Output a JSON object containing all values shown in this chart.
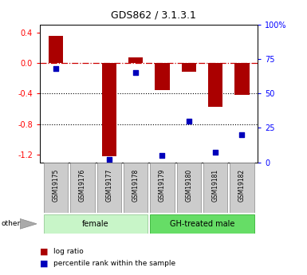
{
  "title": "GDS862 / 3.1.3.1",
  "samples": [
    "GSM19175",
    "GSM19176",
    "GSM19177",
    "GSM19178",
    "GSM19179",
    "GSM19180",
    "GSM19181",
    "GSM19182"
  ],
  "log_ratio": [
    0.35,
    0.0,
    -1.22,
    0.07,
    -0.35,
    -0.12,
    -0.57,
    -0.42
  ],
  "percentile_rank": [
    68,
    null,
    2,
    65,
    5,
    30,
    7,
    20
  ],
  "groups": [
    {
      "label": "female",
      "start": 0,
      "end": 3,
      "color": "#c8f5c8",
      "edge_color": "#a0d0a0"
    },
    {
      "label": "GH-treated male",
      "start": 4,
      "end": 7,
      "color": "#66dd66",
      "edge_color": "#44bb44"
    }
  ],
  "bar_color": "#aa0000",
  "dot_color": "#0000bb",
  "ylim_left": [
    -1.3,
    0.5
  ],
  "ylim_right": [
    0,
    100
  ],
  "yticks_left": [
    -1.2,
    -0.8,
    -0.4,
    0.0,
    0.4
  ],
  "yticks_right": [
    0,
    25,
    50,
    75,
    100
  ],
  "ytick_labels_right": [
    "0",
    "25",
    "50",
    "75",
    "100%"
  ],
  "hline_y": 0.0,
  "dotted_lines": [
    -0.4,
    -0.8
  ],
  "bar_width": 0.55,
  "other_label": "other",
  "label_box_color": "#cccccc",
  "fig_bg": "#ffffff"
}
